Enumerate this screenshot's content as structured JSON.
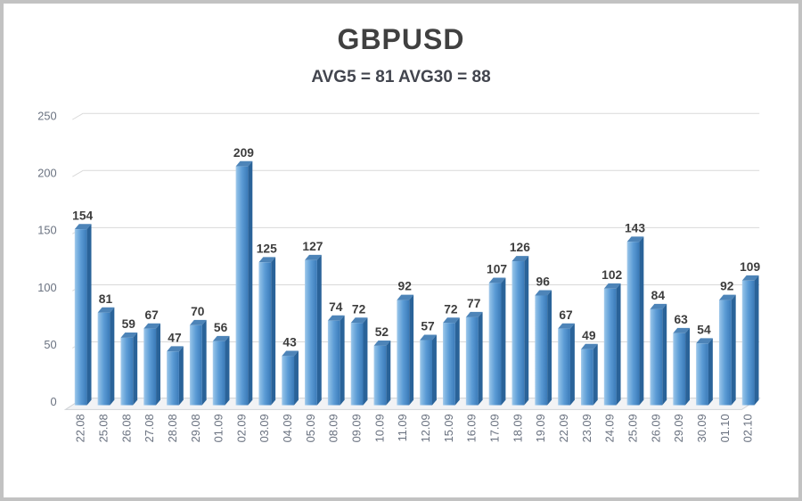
{
  "frame": {
    "border_color": "#c2c2c2",
    "background": "#ffffff"
  },
  "header": {
    "title": "GBPUSD",
    "subtitle": "AVG5 = 81 AVG30 = 88",
    "title_color": "#404040",
    "subtitle_color": "#42454e"
  },
  "chart_data": {
    "type": "bar",
    "title": "GBPUSD",
    "subtitle": "AVG5 = 81 AVG30 = 88",
    "categories": [
      "22.08",
      "25.08",
      "26.08",
      "27.08",
      "28.08",
      "29.08",
      "01.09",
      "02.09",
      "03.09",
      "04.09",
      "05.09",
      "08.09",
      "09.09",
      "10.09",
      "11.09",
      "12.09",
      "15.09",
      "16.09",
      "17.09",
      "18.09",
      "19.09",
      "22.09",
      "23.09",
      "24.09",
      "25.09",
      "26.09",
      "29.09",
      "30.09",
      "01.10",
      "02.10"
    ],
    "values": [
      154,
      81,
      59,
      67,
      47,
      70,
      56,
      209,
      125,
      43,
      127,
      74,
      72,
      52,
      92,
      57,
      72,
      77,
      107,
      126,
      96,
      67,
      49,
      102,
      143,
      84,
      63,
      54,
      92,
      109
    ],
    "xlabel": "",
    "ylabel": "",
    "ylim": [
      0,
      250
    ],
    "yticks": [
      0,
      50,
      100,
      150,
      200,
      250
    ],
    "grid": true,
    "legend": false,
    "style": {
      "bar_face": "#5b9bd5",
      "bar_face_light": "#a9cdec",
      "bar_face_mid": "#8abce5",
      "bar_face_dark": "#3a7ab8",
      "bar_side": "#2a6399",
      "bar_top": "#4d84b8",
      "gridline": "#d9d9d9",
      "floor_fill": "#f2f3f5",
      "floor_edge": "#cfd2d6",
      "value_label_color": "#3d3d3d",
      "axis_label_color": "#6a7280"
    }
  }
}
